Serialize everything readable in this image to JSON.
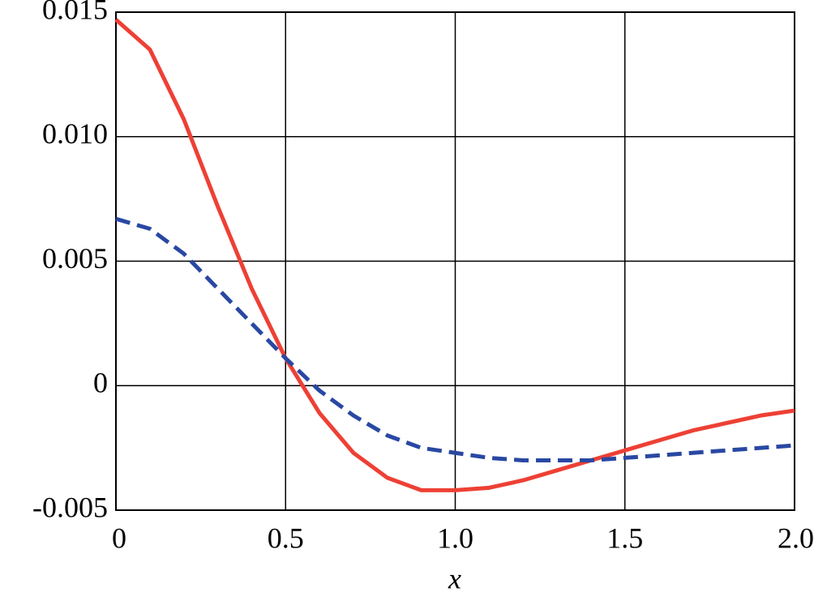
{
  "chart_data": {
    "type": "line",
    "x_label": "x",
    "x": [
      0,
      0.1,
      0.2,
      0.3,
      0.4,
      0.5,
      0.6,
      0.7,
      0.8,
      0.9,
      1.0,
      1.1,
      1.2,
      1.3,
      1.4,
      1.5,
      1.6,
      1.7,
      1.8,
      1.9,
      2.0
    ],
    "series": [
      {
        "color": "#ee4035",
        "dash": false,
        "values": [
          0.0147,
          0.0135,
          0.0107,
          0.0072,
          0.0039,
          0.0011,
          -0.0011,
          -0.0027,
          -0.0037,
          -0.0042,
          -0.0042,
          -0.0041,
          -0.0038,
          -0.0034,
          -0.003,
          -0.0026,
          -0.0022,
          -0.0018,
          -0.0015,
          -0.0012,
          -0.001
        ]
      },
      {
        "color": "#2948a3",
        "dash": true,
        "values": [
          0.0067,
          0.0063,
          0.0053,
          0.0039,
          0.0025,
          0.0011,
          -0.0002,
          -0.0012,
          -0.002,
          -0.0025,
          -0.0027,
          -0.0029,
          -0.003,
          -0.003,
          -0.003,
          -0.0029,
          -0.0028,
          -0.0027,
          -0.0026,
          -0.0025,
          -0.0024
        ]
      }
    ],
    "xlim": [
      0,
      2.0
    ],
    "xticks": [
      0,
      0.5,
      {
        "value": 1.0,
        "label": "1.0"
      },
      1.5,
      {
        "value": 2.0,
        "label": "2.0"
      }
    ],
    "ylim": [
      -0.005,
      0.015
    ],
    "yticks": [
      {
        "value": -0.005,
        "label": "-0.005"
      },
      0,
      {
        "value": 0.005,
        "label": "0.005"
      },
      {
        "value": 0.01,
        "label": "0.010"
      },
      {
        "value": 0.015,
        "label": "0.015"
      }
    ],
    "grid": true
  }
}
